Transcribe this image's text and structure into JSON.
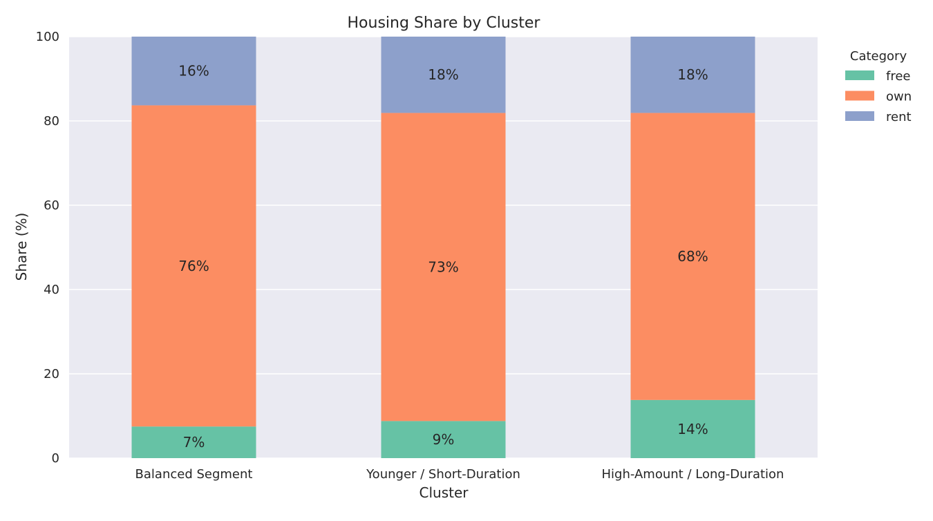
{
  "chart_data": {
    "type": "bar",
    "stacked": true,
    "title": "Housing Share by Cluster",
    "xlabel": "Cluster",
    "ylabel": "Share (%)",
    "ylim": [
      0,
      100
    ],
    "yticks": [
      0,
      20,
      40,
      60,
      80,
      100
    ],
    "grid": true,
    "categories": [
      "Balanced Segment",
      "Younger / Short-Duration",
      "High-Amount / Long-Duration"
    ],
    "series": [
      {
        "name": "free",
        "color": "#66c2a5",
        "values": [
          7.5,
          8.8,
          13.8
        ],
        "labels": [
          "7%",
          "9%",
          "14%"
        ]
      },
      {
        "name": "own",
        "color": "#fc8d62",
        "values": [
          76.2,
          73.1,
          68.1
        ],
        "labels": [
          "76%",
          "73%",
          "68%"
        ]
      },
      {
        "name": "rent",
        "color": "#8da0cb",
        "values": [
          16.3,
          18.1,
          18.1
        ],
        "labels": [
          "16%",
          "18%",
          "18%"
        ]
      }
    ],
    "legend": {
      "title": "Category",
      "placement": "outside-top-right"
    },
    "colors": {
      "plot_background": "#eaeaf2",
      "grid": "#ffffff"
    }
  }
}
